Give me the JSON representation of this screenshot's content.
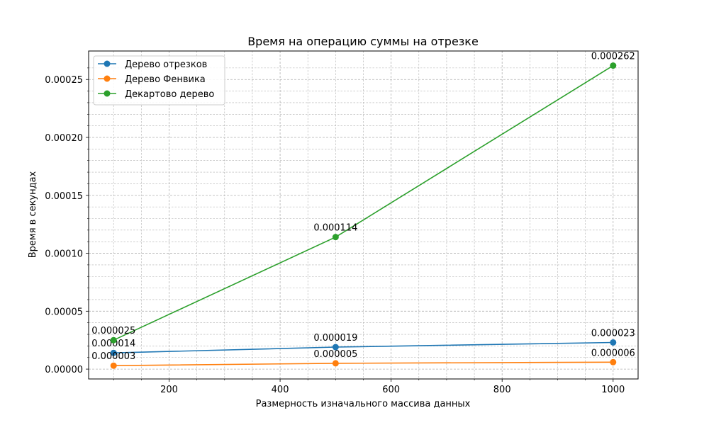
{
  "chart_data": {
    "type": "line",
    "title": "Время на операцию суммы на отрезке",
    "xlabel": "Размерность изначального массива данных",
    "ylabel": "Время в секундах",
    "x": [
      100,
      500,
      1000
    ],
    "xlim": [
      55,
      1045
    ],
    "ylim": [
      -8.5e-06,
      0.0002746
    ],
    "x_ticks": [
      200,
      400,
      600,
      800,
      1000
    ],
    "y_ticks": [
      0,
      5e-05,
      0.0001,
      0.00015,
      0.0002,
      0.00025
    ],
    "x_tick_labels": [
      "200",
      "400",
      "600",
      "800",
      "1000"
    ],
    "y_tick_labels": [
      "0.00000",
      "0.00005",
      "0.00010",
      "0.00015",
      "0.00020",
      "0.00025"
    ],
    "grid": true,
    "legend_position": "top-left",
    "series": [
      {
        "name": "Дерево отрезков",
        "color": "#1f77b4",
        "values": [
          1.4e-05,
          1.9e-05,
          2.3e-05
        ],
        "labels": [
          "0.000014",
          "0.000019",
          "0.000023"
        ]
      },
      {
        "name": "Дерево Фенвика",
        "color": "#ff7f0e",
        "values": [
          3e-06,
          5e-06,
          6e-06
        ],
        "labels": [
          "0.000003",
          "0.000005",
          "0.000006"
        ]
      },
      {
        "name": "Декартово дерево",
        "color": "#2ca02c",
        "values": [
          2.5e-05,
          0.000114,
          0.000262
        ],
        "labels": [
          "0.000025",
          "0.000114",
          "0.000262"
        ]
      }
    ]
  }
}
